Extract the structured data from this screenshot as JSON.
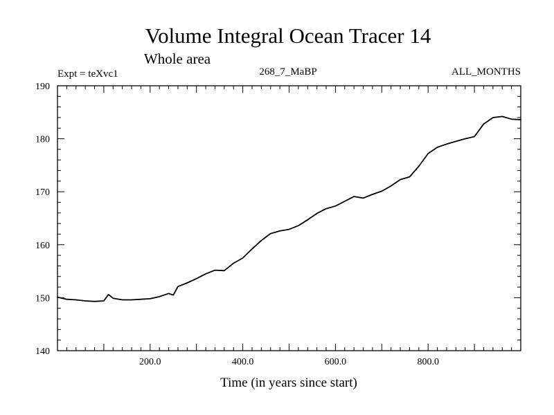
{
  "chart_data": {
    "type": "line",
    "title": "Volume Integral Ocean Tracer 14",
    "subtitle": "Whole area",
    "expt_label": "Expt = teXvc1",
    "run_label": "268_7_MaBP",
    "months_label": "ALL_MONTHS",
    "xlabel": "Time (in years since start)",
    "ylabel": "",
    "xlim": [
      0,
      1000
    ],
    "ylim": [
      140,
      190
    ],
    "x_ticks": [
      200,
      400,
      600,
      800
    ],
    "x_tick_labels": [
      "200.0",
      "400.0",
      "600.0",
      "800.0"
    ],
    "y_ticks": [
      140,
      150,
      160,
      170,
      180,
      190
    ],
    "y_tick_labels": [
      "140",
      "150",
      "160",
      "170",
      "180",
      "190"
    ],
    "series": [
      {
        "name": "Tracer 14",
        "x": [
          0,
          20,
          40,
          60,
          80,
          100,
          110,
          120,
          140,
          160,
          180,
          200,
          220,
          240,
          250,
          260,
          280,
          300,
          320,
          340,
          360,
          380,
          400,
          420,
          440,
          460,
          480,
          500,
          520,
          540,
          560,
          580,
          600,
          620,
          640,
          660,
          680,
          700,
          720,
          740,
          760,
          780,
          800,
          820,
          840,
          860,
          880,
          900,
          920,
          940,
          960,
          980,
          1000
        ],
        "y": [
          150.1,
          149.7,
          149.6,
          149.4,
          149.3,
          149.4,
          150.6,
          149.9,
          149.6,
          149.6,
          149.7,
          149.8,
          150.2,
          150.8,
          150.5,
          152.1,
          152.8,
          153.6,
          154.5,
          155.2,
          155.1,
          156.5,
          157.5,
          159.2,
          160.8,
          162.1,
          162.6,
          162.9,
          163.6,
          164.7,
          165.9,
          166.8,
          167.3,
          168.2,
          169.1,
          168.8,
          169.5,
          170.1,
          171.1,
          172.3,
          172.8,
          174.8,
          177.2,
          178.4,
          179.0,
          179.5,
          180.0,
          180.4,
          182.8,
          184.0,
          184.2,
          183.7,
          183.6
        ]
      }
    ]
  }
}
